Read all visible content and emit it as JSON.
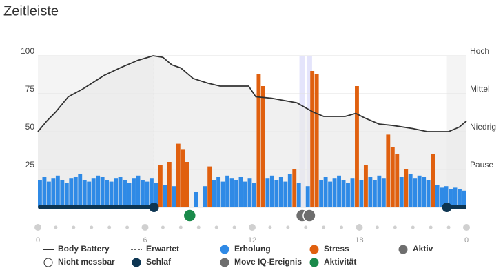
{
  "chart_data": {
    "type": "bar",
    "title": "Zeitleiste",
    "xlim": [
      0,
      24
    ],
    "xticks": [
      0,
      6,
      12,
      18,
      {
        "value": 24,
        "label": "0"
      }
    ],
    "ylim": [
      0,
      100
    ],
    "yticks": [
      25,
      50,
      75,
      100
    ],
    "y2lim": [
      0,
      100
    ],
    "y2ticks": [
      {
        "value": 100,
        "label": "Hoch"
      },
      {
        "value": 75,
        "label": "Mittel"
      },
      {
        "value": 50,
        "label": "Niedrig"
      },
      {
        "value": 25,
        "label": "Pause"
      }
    ],
    "grid": true,
    "x": [
      0,
      0.25,
      0.5,
      0.75,
      1,
      1.25,
      1.5,
      1.75,
      2,
      2.25,
      2.5,
      2.75,
      3,
      3.25,
      3.5,
      3.75,
      4,
      4.25,
      4.5,
      4.75,
      5,
      5.25,
      5.5,
      5.75,
      6,
      6.25,
      6.5,
      6.75,
      7,
      7.25,
      7.5,
      7.75,
      8,
      8.25,
      8.5,
      8.75,
      9,
      9.25,
      9.5,
      9.75,
      10,
      10.25,
      10.5,
      10.75,
      11,
      11.25,
      11.5,
      11.75,
      12,
      12.25,
      12.5,
      12.75,
      13,
      13.25,
      13.5,
      13.75,
      14,
      14.25,
      14.5,
      14.75,
      15,
      15.25,
      15.5,
      15.75,
      16,
      16.25,
      16.5,
      16.75,
      17,
      17.25,
      17.5,
      17.75,
      18,
      18.25,
      18.5,
      18.75,
      19,
      19.25,
      19.5,
      19.75,
      20,
      20.25,
      20.5,
      20.75,
      21,
      21.25,
      21.5,
      21.75,
      22,
      22.25,
      22.5,
      22.75,
      23,
      23.25,
      23.5,
      23.75
    ],
    "series": [
      {
        "name": "Erholung",
        "color": "#2f8ae6",
        "values": [
          18,
          20,
          17,
          19,
          21,
          18,
          16,
          19,
          20,
          22,
          18,
          17,
          19,
          21,
          20,
          18,
          17,
          19,
          20,
          18,
          16,
          19,
          21,
          18,
          17,
          19,
          16,
          null,
          15,
          null,
          14,
          null,
          null,
          null,
          null,
          10,
          null,
          14,
          null,
          18,
          20,
          17,
          21,
          19,
          18,
          20,
          17,
          19,
          16,
          null,
          null,
          19,
          21,
          18,
          20,
          17,
          22,
          null,
          16,
          null,
          14,
          null,
          null,
          18,
          20,
          17,
          19,
          21,
          18,
          16,
          19,
          null,
          18,
          null,
          20,
          18,
          21,
          19,
          null,
          null,
          null,
          20,
          null,
          22,
          19,
          21,
          20,
          18,
          null,
          15,
          13,
          14,
          12,
          13,
          12,
          11
        ]
      },
      {
        "name": "Stress",
        "color": "#e0600f",
        "values": [
          null,
          null,
          null,
          null,
          null,
          null,
          null,
          null,
          null,
          null,
          null,
          null,
          null,
          null,
          null,
          null,
          null,
          null,
          null,
          null,
          null,
          null,
          null,
          null,
          null,
          null,
          null,
          28,
          null,
          30,
          null,
          42,
          38,
          30,
          null,
          null,
          null,
          null,
          27,
          null,
          null,
          null,
          null,
          null,
          null,
          null,
          null,
          null,
          null,
          88,
          80,
          null,
          null,
          null,
          null,
          null,
          null,
          25,
          null,
          null,
          null,
          90,
          88,
          null,
          null,
          null,
          null,
          null,
          null,
          null,
          null,
          80,
          null,
          28,
          null,
          null,
          null,
          null,
          48,
          40,
          35,
          null,
          25,
          null,
          null,
          null,
          null,
          null,
          35,
          null,
          null,
          null,
          null,
          null,
          null,
          null
        ]
      }
    ],
    "line": {
      "name": "Body Battery",
      "color": "#333333",
      "x": [
        0,
        0.5,
        1,
        1.7,
        2.5,
        3.7,
        4.6,
        5.6,
        6.45,
        7,
        7.5,
        8,
        8.7,
        9.5,
        10.2,
        11.8,
        12.2,
        13.1,
        14.5,
        15.4,
        16,
        17.2,
        17.8,
        18.3,
        19.1,
        19.9,
        21,
        21.8,
        23,
        23.6,
        24
      ],
      "values": [
        50,
        57,
        63,
        73,
        78,
        87,
        92,
        97,
        100,
        99,
        94,
        92,
        85,
        82,
        80,
        80,
        73,
        72,
        69,
        63,
        60,
        60,
        62,
        59,
        55,
        54,
        52,
        50,
        50,
        53,
        57
      ]
    },
    "expected": {
      "name": "Erwartet"
    },
    "active": {
      "name": "Aktiv",
      "color": "#6e6e6e"
    },
    "not_measurable": {
      "name": "Nicht messbar"
    },
    "sleep": {
      "name": "Schlaf",
      "color": "#0d3552",
      "intervals": [
        [
          0,
          6.5
        ],
        [
          22.9,
          24
        ]
      ]
    },
    "move_iq": {
      "name": "Move IQ-Ereignis",
      "color": "#6e6e6e",
      "x": [
        14.8,
        15.2
      ]
    },
    "activity": {
      "name": "Aktivität",
      "color": "#1a8a4a",
      "x": [
        8.5
      ]
    }
  }
}
